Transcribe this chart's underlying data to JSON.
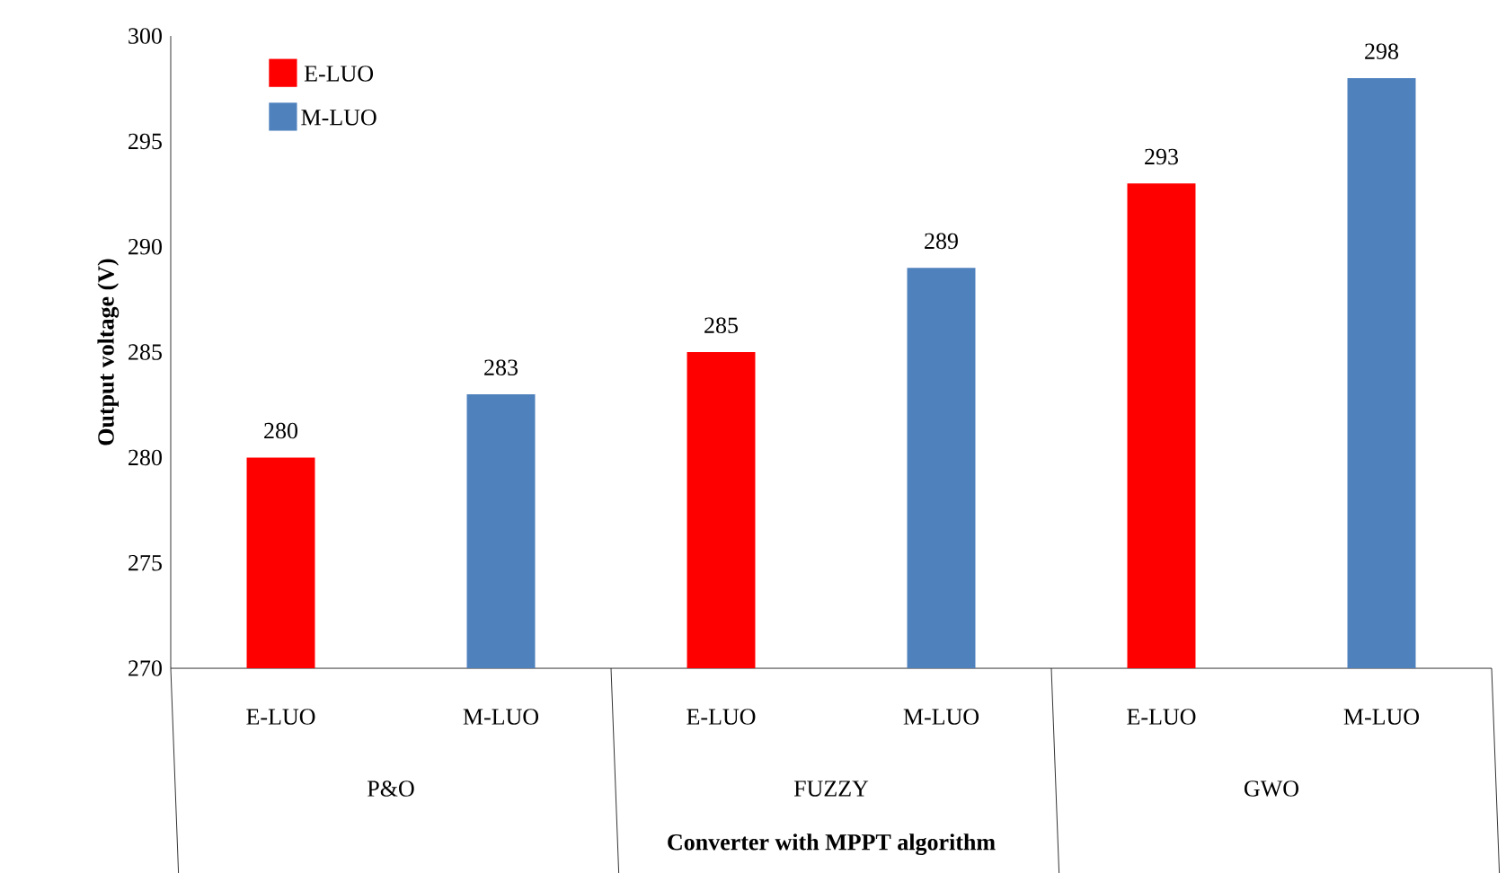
{
  "chart_data": {
    "type": "bar",
    "xlabel": "Converter with MPPT algorithm",
    "ylabel": "Output voltage (V)",
    "categories": [
      "P&O",
      "FUZZY",
      "GWO"
    ],
    "series": [
      {
        "name": "E-LUO",
        "color": "#ff0000",
        "values": [
          280,
          285,
          293
        ]
      },
      {
        "name": "M-LUO",
        "color": "#4f81bd",
        "values": [
          283,
          289,
          298
        ]
      }
    ],
    "ylim": [
      270,
      300
    ],
    "yticks": [
      270,
      275,
      280,
      285,
      290,
      295,
      300
    ],
    "data_labels": true,
    "legend": "top left",
    "grid": false
  }
}
